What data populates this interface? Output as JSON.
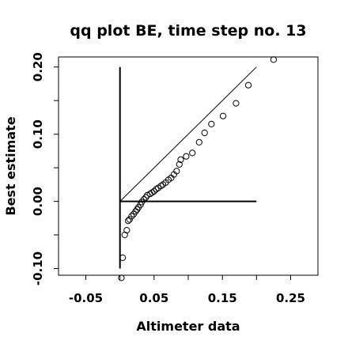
{
  "chart_data": {
    "type": "scatter",
    "title": "qq plot BE, time step no. 13",
    "xlabel": "Altimeter data",
    "ylabel": "Best estimate",
    "xlim": [
      -0.09,
      0.29
    ],
    "ylim": [
      -0.11,
      0.215
    ],
    "x_ticks": [
      -0.05,
      0.05,
      0.15,
      0.25
    ],
    "x_tick_labels": [
      "-0.05",
      "0.05",
      "0.15",
      "0.25"
    ],
    "y_ticks": [
      -0.1,
      0.0,
      0.1,
      0.2
    ],
    "y_tick_labels": [
      "-0.10",
      "0.00",
      "0.10",
      "0.20"
    ],
    "x_minor_ticks": [
      0.0,
      0.1,
      0.2
    ],
    "y_minor_ticks": [
      -0.05,
      0.05,
      0.15
    ],
    "grid": false,
    "reference_lines": [
      {
        "x": [
          0.0,
          0.2
        ],
        "y": [
          0.0,
          0.2
        ]
      },
      {
        "x": [
          0.0,
          0.0
        ],
        "y": [
          -0.1,
          0.2
        ]
      },
      {
        "x": [
          0.0,
          0.2
        ],
        "y": [
          0.0,
          0.0
        ]
      }
    ],
    "points": [
      {
        "x": 0.002,
        "y": -0.114
      },
      {
        "x": 0.004,
        "y": -0.084
      },
      {
        "x": 0.007,
        "y": -0.05
      },
      {
        "x": 0.01,
        "y": -0.043
      },
      {
        "x": 0.012,
        "y": -0.029
      },
      {
        "x": 0.014,
        "y": -0.027
      },
      {
        "x": 0.017,
        "y": -0.022
      },
      {
        "x": 0.02,
        "y": -0.019
      },
      {
        "x": 0.023,
        "y": -0.015
      },
      {
        "x": 0.025,
        "y": -0.012
      },
      {
        "x": 0.027,
        "y": -0.009
      },
      {
        "x": 0.03,
        "y": -0.005
      },
      {
        "x": 0.032,
        "y": -0.001
      },
      {
        "x": 0.035,
        "y": 0.003
      },
      {
        "x": 0.038,
        "y": 0.006
      },
      {
        "x": 0.04,
        "y": 0.009
      },
      {
        "x": 0.044,
        "y": 0.011
      },
      {
        "x": 0.047,
        "y": 0.013
      },
      {
        "x": 0.05,
        "y": 0.015
      },
      {
        "x": 0.053,
        "y": 0.018
      },
      {
        "x": 0.056,
        "y": 0.02
      },
      {
        "x": 0.06,
        "y": 0.023
      },
      {
        "x": 0.063,
        "y": 0.025
      },
      {
        "x": 0.067,
        "y": 0.028
      },
      {
        "x": 0.071,
        "y": 0.032
      },
      {
        "x": 0.075,
        "y": 0.035
      },
      {
        "x": 0.079,
        "y": 0.04
      },
      {
        "x": 0.083,
        "y": 0.045
      },
      {
        "x": 0.087,
        "y": 0.055
      },
      {
        "x": 0.089,
        "y": 0.062
      },
      {
        "x": 0.097,
        "y": 0.067
      },
      {
        "x": 0.106,
        "y": 0.072
      },
      {
        "x": 0.116,
        "y": 0.088
      },
      {
        "x": 0.124,
        "y": 0.102
      },
      {
        "x": 0.134,
        "y": 0.115
      },
      {
        "x": 0.151,
        "y": 0.127
      },
      {
        "x": 0.17,
        "y": 0.146
      },
      {
        "x": 0.188,
        "y": 0.173
      },
      {
        "x": 0.225,
        "y": 0.211
      }
    ]
  }
}
